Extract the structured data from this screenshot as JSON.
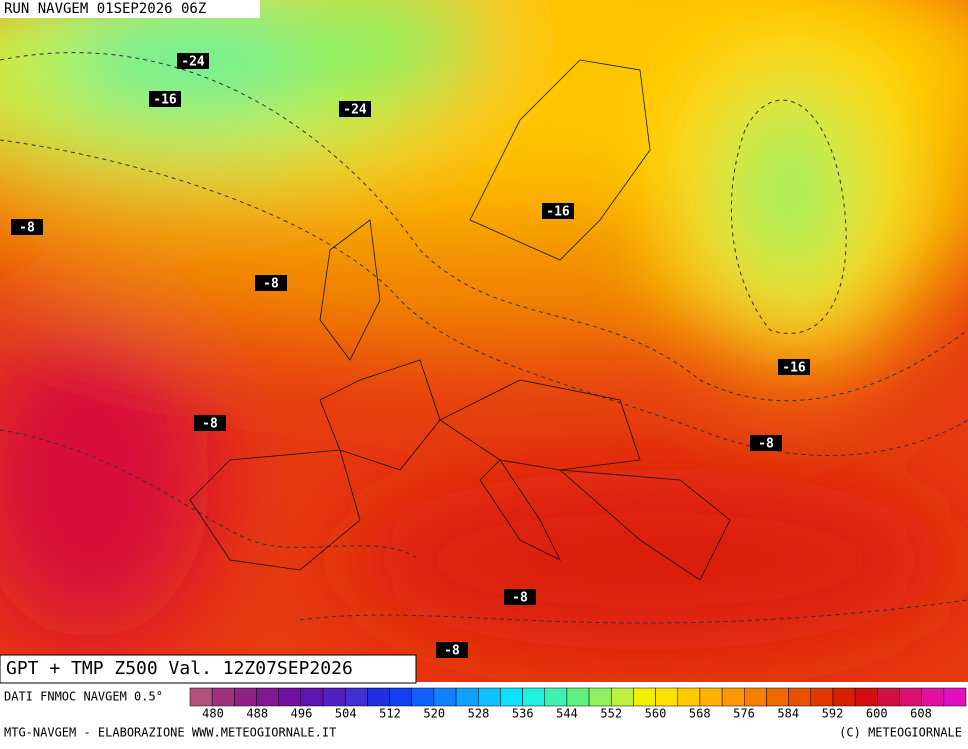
{
  "header": {
    "run": "RUN NAVGEM 01SEP2026 06Z"
  },
  "contour_labels": [
    "-24",
    "-16",
    "-24",
    "-8",
    "-16",
    "-8",
    "-16",
    "-8",
    "-8",
    "-8",
    "-8"
  ],
  "title": "GPT + TMP Z500 Val. 12Z07SEP2026",
  "legend": {
    "source": "DATI FNMOC NAVGEM 0.5°",
    "colors": [
      "#b0507e",
      "#a03080",
      "#902088",
      "#801894",
      "#7010a0",
      "#6014b0",
      "#5020c0",
      "#4030d0",
      "#2030e0",
      "#1040f0",
      "#1060ff",
      "#1080ff",
      "#10a0ff",
      "#10c0ff",
      "#10e0ff",
      "#20f0e0",
      "#40f0b0",
      "#60f080",
      "#90f060",
      "#c0f040",
      "#f0f000",
      "#ffe000",
      "#ffc800",
      "#ffb000",
      "#ff9800",
      "#f88000",
      "#f06800",
      "#e85000",
      "#e03800",
      "#d82000",
      "#d01010",
      "#d01040",
      "#d81070",
      "#e010a0",
      "#e010c0"
    ],
    "ticks": [
      480,
      488,
      496,
      504,
      512,
      520,
      528,
      536,
      544,
      552,
      560,
      568,
      576,
      584,
      592,
      600,
      608
    ]
  },
  "footer": {
    "left": "MTG-NAVGEM - ELABORAZIONE WWW.METEOGIORNALE.IT",
    "right": "(C) METEOGIORNALE"
  }
}
